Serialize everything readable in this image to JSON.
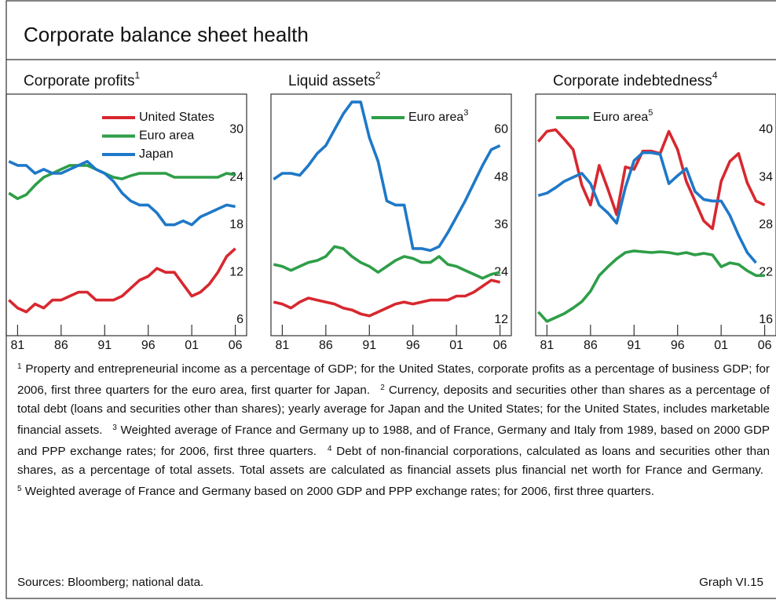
{
  "title": "Corporate balance sheet health",
  "chart_data": [
    {
      "type": "line",
      "title": "Corporate profits",
      "title_note": "1",
      "legend": "upper right",
      "x": [
        1980,
        1981,
        1982,
        1983,
        1984,
        1985,
        1986,
        1987,
        1988,
        1989,
        1990,
        1991,
        1992,
        1993,
        1994,
        1995,
        1996,
        1997,
        1998,
        1999,
        2000,
        2001,
        2002,
        2003,
        2004,
        2005,
        2006
      ],
      "xlim": [
        1979.7,
        2007.3
      ],
      "xticks": [
        {
          "value": 1981,
          "label": "81"
        },
        {
          "value": 1986,
          "label": "86"
        },
        {
          "value": 1991,
          "label": "91"
        },
        {
          "value": 1996,
          "label": "96"
        },
        {
          "value": 2001,
          "label": "01"
        },
        {
          "value": 2006,
          "label": "06"
        }
      ],
      "ylim": [
        4,
        34.5
      ],
      "yticks": [
        6,
        12,
        18,
        24,
        30
      ],
      "series": [
        {
          "name": "United States",
          "color": "#d7282f",
          "values": [
            8.5,
            7.5,
            7,
            8,
            7.5,
            8.5,
            8.5,
            9,
            9.5,
            9.5,
            8.5,
            8.5,
            8.5,
            9,
            10,
            11,
            11.5,
            12.5,
            12,
            12,
            10.5,
            9,
            9.5,
            10.5,
            12,
            14,
            15
          ]
        },
        {
          "name": "Euro area",
          "color": "#2e9e48",
          "values": [
            22,
            21.3,
            21.8,
            23,
            24,
            24.5,
            25,
            25.5,
            25.5,
            25.5,
            25,
            24.5,
            24,
            23.8,
            24.2,
            24.5,
            24.5,
            24.5,
            24.5,
            24,
            24,
            24,
            24,
            24,
            24,
            24.5,
            24.3
          ]
        },
        {
          "name": "Japan",
          "color": "#1f78c8",
          "values": [
            26,
            25.5,
            25.5,
            24.5,
            25,
            24.5,
            24.5,
            25,
            25.5,
            26,
            25,
            24.5,
            23.5,
            22,
            21,
            20.5,
            20.5,
            19.5,
            18,
            18,
            18.5,
            18,
            19,
            19.5,
            20,
            20.5,
            20.3
          ]
        }
      ]
    },
    {
      "type": "line",
      "title": "Liquid assets",
      "title_note": "2",
      "legend": "upper center",
      "x": [
        1980,
        1981,
        1982,
        1983,
        1984,
        1985,
        1986,
        1987,
        1988,
        1989,
        1990,
        1991,
        1992,
        1993,
        1994,
        1995,
        1996,
        1997,
        1998,
        1999,
        2000,
        2001,
        2002,
        2003,
        2004,
        2005,
        2006
      ],
      "xlim": [
        1979.7,
        2007.3
      ],
      "xticks": [
        {
          "value": 1981,
          "label": "81"
        },
        {
          "value": 1986,
          "label": "86"
        },
        {
          "value": 1991,
          "label": "91"
        },
        {
          "value": 1996,
          "label": "96"
        },
        {
          "value": 2001,
          "label": "01"
        },
        {
          "value": 2006,
          "label": "06"
        }
      ],
      "ylim": [
        8,
        69
      ],
      "yticks": [
        12,
        24,
        36,
        48,
        60
      ],
      "series": [
        {
          "color": "#d7282f",
          "values": [
            16.5,
            16,
            15,
            16.5,
            17.5,
            17,
            16.5,
            16,
            15,
            14.5,
            13.5,
            13,
            14,
            15,
            16,
            16.5,
            16,
            16.5,
            17,
            17,
            17,
            18,
            18,
            19,
            20.5,
            22,
            21.5
          ]
        },
        {
          "name": "Euro area",
          "note": "3",
          "color": "#2e9e48",
          "values": [
            26,
            25.5,
            24.5,
            25.5,
            26.5,
            27,
            28,
            30.5,
            30,
            28,
            26.5,
            25.5,
            24,
            25.5,
            27,
            28,
            27.5,
            26.5,
            26.5,
            28,
            26,
            25.5,
            24.5,
            23.5,
            22.5,
            23.5,
            24
          ]
        },
        {
          "color": "#1f78c8",
          "values": [
            47.5,
            49,
            49,
            48.5,
            51,
            54,
            56,
            60,
            64,
            67,
            67,
            58,
            52,
            42,
            41,
            41,
            30,
            30,
            29.5,
            30.5,
            34,
            38,
            42,
            46.5,
            51,
            55,
            56
          ]
        }
      ]
    },
    {
      "type": "line",
      "title": "Corporate indebtedness",
      "title_note": "4",
      "legend": "upper left",
      "x": [
        1980,
        1981,
        1982,
        1983,
        1984,
        1985,
        1986,
        1987,
        1988,
        1989,
        1990,
        1991,
        1992,
        1993,
        1994,
        1995,
        1996,
        1997,
        1998,
        1999,
        2000,
        2001,
        2002,
        2003,
        2004,
        2005,
        2006
      ],
      "xlim": [
        1979.7,
        2007.3
      ],
      "xticks": [
        {
          "value": 1981,
          "label": "81"
        },
        {
          "value": 1986,
          "label": "86"
        },
        {
          "value": 1991,
          "label": "91"
        },
        {
          "value": 1996,
          "label": "96"
        },
        {
          "value": 2001,
          "label": "01"
        },
        {
          "value": 2006,
          "label": "06"
        }
      ],
      "ylim": [
        14,
        44.5
      ],
      "yticks": [
        16,
        22,
        28,
        34,
        40
      ],
      "series": [
        {
          "color": "#d7282f",
          "values": [
            38.5,
            39.8,
            40,
            38.8,
            37.5,
            33,
            30.5,
            35.5,
            32.5,
            29.3,
            35.3,
            35,
            37.3,
            37.3,
            37,
            39.8,
            37.5,
            33.5,
            31,
            28.5,
            27.5,
            33.5,
            36,
            37,
            33.3,
            31,
            30.5
          ]
        },
        {
          "color": "#1f78c8",
          "values": [
            31.7,
            32,
            32.7,
            33.5,
            34,
            34.5,
            33.2,
            30.5,
            29.5,
            28.2,
            32.7,
            36.1,
            37.1,
            37.1,
            36.9,
            33.2,
            34.2,
            35.1,
            32.2,
            31.2,
            31,
            31,
            29.2,
            26.7,
            24.5,
            23.2,
            null
          ]
        },
        {
          "name": "Euro area",
          "note": "5",
          "color": "#2e9e48",
          "values": [
            17,
            15.8,
            16.3,
            16.8,
            17.5,
            18.3,
            19.6,
            21.6,
            22.7,
            23.7,
            24.5,
            24.7,
            24.6,
            24.5,
            24.6,
            24.5,
            24.3,
            24.5,
            24.2,
            24.4,
            24.2,
            22.7,
            23.2,
            23,
            22.2,
            21.6,
            21.6
          ]
        }
      ]
    }
  ],
  "footnotes": [
    {
      "mark": "1",
      "text": "Property and entrepreneurial income as a percentage of GDP; for the United States, corporate profits as a percentage of business GDP; for 2006, first three quarters for the euro area, first quarter for Japan."
    },
    {
      "mark": "2",
      "text": "Currency, deposits and securities other than shares as a percentage of total debt (loans and securities other than shares); yearly average for Japan and the United States; for the United States, includes marketable financial assets."
    },
    {
      "mark": "3",
      "text": "Weighted average of France and Germany up to 1988, and of France, Germany and Italy from 1989, based on 2000 GDP and PPP exchange rates; for 2006, first three quarters."
    },
    {
      "mark": "4",
      "text": "Debt of non-financial corporations, calculated as loans and securities other than shares, as a percentage of total assets. Total assets are calculated as financial assets plus financial net worth for France and Germany."
    },
    {
      "mark": "5",
      "text": "Weighted average of France and Germany based on 2000 GDP and PPP exchange rates; for 2006, first three quarters."
    }
  ],
  "sources": "Sources: Bloomberg; national data.",
  "graph_label": "Graph VI.15"
}
